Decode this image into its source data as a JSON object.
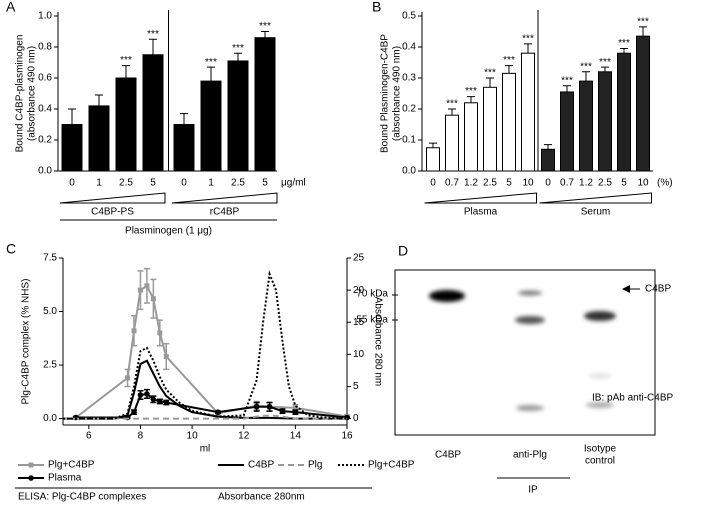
{
  "chart_data": [
    {
      "type": "bar",
      "panel_label": "A",
      "ylabel": [
        "Bound C4BP-plasminogen",
        "(absorbance 490 nm)"
      ],
      "ylim": [
        0,
        1.0
      ],
      "yticks": [
        {
          "value": 0,
          "label": "0.0"
        },
        0.2,
        0.4,
        0.6,
        0.8,
        {
          "value": 1,
          "label": "1.0"
        }
      ],
      "x_unit": "μg/ml",
      "footer": "Plasminogen (1 μg)",
      "series": [
        {
          "name": "C4BP-PS",
          "color": "#000000",
          "categories": [
            "0",
            "1",
            "2.5",
            "5"
          ],
          "values": [
            0.3,
            0.42,
            0.6,
            0.75
          ],
          "errors": [
            0.1,
            0.07,
            0.08,
            0.1
          ],
          "significance": [
            null,
            null,
            "***",
            "***"
          ]
        },
        {
          "name": "rC4BP",
          "color": "#000000",
          "categories": [
            "0",
            "1",
            "2.5",
            "5"
          ],
          "values": [
            0.3,
            0.58,
            0.71,
            0.86
          ],
          "errors": [
            0.07,
            0.09,
            0.05,
            0.04
          ],
          "significance": [
            null,
            "***",
            "***",
            "***"
          ]
        }
      ]
    },
    {
      "type": "bar",
      "panel_label": "B",
      "ylabel": [
        "Bound Plasminogen-C4BP",
        "(absorbance 490 nm)"
      ],
      "ylim": [
        0,
        0.5
      ],
      "yticks": [
        {
          "value": 0,
          "label": "0.0"
        },
        0.1,
        0.2,
        0.3,
        0.4,
        0.5
      ],
      "x_unit": "(%)",
      "series": [
        {
          "name": "Plasma",
          "color": "#ffffff",
          "categories": [
            "0",
            "0.7",
            "1.2",
            "2.5",
            "5",
            "10"
          ],
          "values": [
            0.075,
            0.18,
            0.22,
            0.27,
            0.315,
            0.38
          ],
          "errors": [
            0.015,
            0.02,
            0.02,
            0.03,
            0.025,
            0.03
          ],
          "significance": [
            null,
            "***",
            "***",
            "***",
            "***",
            "***"
          ]
        },
        {
          "name": "Serum",
          "color": "#222222",
          "categories": [
            "0",
            "0.7",
            "1.2",
            "2.5",
            "5",
            "10"
          ],
          "values": [
            0.07,
            0.255,
            0.29,
            0.32,
            0.38,
            0.435
          ],
          "errors": [
            0.015,
            0.02,
            0.03,
            0.015,
            0.015,
            0.03
          ],
          "significance": [
            null,
            "***",
            "***",
            "***",
            "***",
            "***"
          ]
        }
      ]
    },
    {
      "type": "line",
      "panel_label": "C",
      "xlabel": "ml",
      "ylabel": "Plg-C4BP complex (% NHS)",
      "y2label": "Absorbance 280 nm",
      "xlim": [
        5,
        16
      ],
      "xticks": [
        6,
        8,
        10,
        12,
        14,
        16
      ],
      "ylim": [
        -0.3,
        7.5
      ],
      "yticks": [
        {
          "value": 0,
          "label": "0.0"
        },
        2.5,
        {
          "value": 5,
          "label": "5.0"
        },
        7.5
      ],
      "y2lim": [
        -1,
        25
      ],
      "y2ticks": [
        0,
        5,
        10,
        15,
        20,
        25
      ],
      "legend_titles": [
        "ELISA: Plg-C4BP complexes",
        "Absorbance 280nm"
      ],
      "series": [
        {
          "name": "Plg+C4BP",
          "color": "#999999",
          "style": "solid",
          "marker": "square",
          "x": [
            5.5,
            7.5,
            7.75,
            8,
            8.25,
            8.5,
            8.75,
            9,
            11,
            12.5,
            13,
            14,
            16
          ],
          "values": [
            0.05,
            1.9,
            4.1,
            6.0,
            6.2,
            5.6,
            4.0,
            2.9,
            0.25,
            0.6,
            0.55,
            0.5,
            0.1
          ],
          "errors": [
            0.05,
            0.4,
            0.7,
            0.9,
            0.8,
            0.9,
            0.6,
            0.6,
            0.1,
            0.2,
            0.2,
            0.15,
            0.05
          ]
        },
        {
          "name": "Plasma",
          "color": "#000000",
          "style": "solid",
          "marker": "circle",
          "x": [
            5.5,
            7.5,
            7.75,
            8,
            8.25,
            8.5,
            8.75,
            9,
            11,
            12.5,
            13,
            13.5,
            14,
            16
          ],
          "values": [
            0.05,
            0.05,
            0.3,
            1.1,
            1.15,
            0.9,
            0.8,
            0.75,
            0.3,
            0.55,
            0.55,
            0.35,
            0.3,
            0.05
          ],
          "errors": [
            0.03,
            0.03,
            0.1,
            0.2,
            0.2,
            0.15,
            0.1,
            0.1,
            0.05,
            0.2,
            0.2,
            0.1,
            0.1,
            0.03
          ]
        },
        {
          "name": "C4BP",
          "color": "#000000",
          "style": "solid",
          "axis": "y2",
          "x": [
            5,
            7,
            7.5,
            7.75,
            8,
            8.25,
            8.5,
            8.75,
            9,
            9.5,
            10,
            11,
            12,
            13,
            14,
            15,
            16
          ],
          "values": [
            0,
            0,
            0.5,
            4,
            8.5,
            9,
            7,
            5,
            3.5,
            2,
            1,
            0.3,
            0.1,
            0.1,
            0,
            0,
            0
          ]
        },
        {
          "name": "Plg",
          "color": "#999999",
          "style": "dashed",
          "axis": "y2",
          "x": [
            5,
            10,
            12,
            12.5,
            13,
            13.5,
            14,
            16
          ],
          "values": [
            0,
            0,
            0,
            0.3,
            0.5,
            0.3,
            0,
            0
          ]
        },
        {
          "name": "Plg+C4BP",
          "color": "#000000",
          "style": "dotted",
          "axis": "y2",
          "x": [
            5,
            7,
            7.5,
            7.75,
            8,
            8.25,
            8.5,
            8.75,
            9,
            9.5,
            10,
            11,
            12,
            12.5,
            12.75,
            13,
            13.25,
            13.5,
            13.75,
            14,
            14.5,
            15,
            16
          ],
          "values": [
            0,
            0,
            0.8,
            5,
            10.5,
            11,
            9,
            6.5,
            4.5,
            2.5,
            1.2,
            0.3,
            0.5,
            6,
            15,
            22.5,
            20,
            12,
            5,
            2,
            0.5,
            0.2,
            0
          ]
        }
      ]
    }
  ],
  "blot": {
    "panel_label": "D",
    "markers": [
      "70 kDa",
      "55 kDa"
    ],
    "arrow_label": "C4BP",
    "probe": "IB: pAb anti-C4BP",
    "lanes": [
      [
        "C4BP"
      ],
      [
        "anti-Plg"
      ],
      [
        "Isotype",
        "control"
      ]
    ],
    "group": "IP"
  }
}
